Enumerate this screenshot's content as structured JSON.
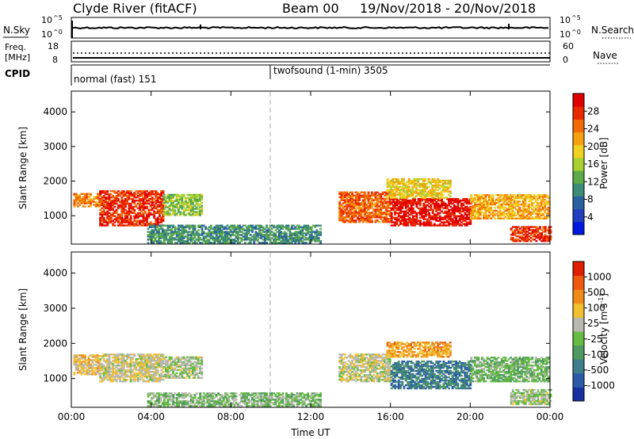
{
  "header": {
    "station": "Clyde River (fitACF)",
    "beam": "Beam 00",
    "date_range": "19/Nov/2018 - 20/Nov/2018"
  },
  "summary_panels": {
    "nsky": {
      "label": "N.Sky",
      "ticks": [
        "10^5",
        "10^0"
      ],
      "right_label": "N.Search",
      "right_ticks": [
        "10^5",
        "10^0"
      ]
    },
    "freq": {
      "label_line1": "Freq.",
      "label_line2": "[MHz]",
      "ticks": [
        "18",
        "8"
      ],
      "right_label": "Nave",
      "right_ticks": [
        "60",
        "0"
      ]
    },
    "cpid": {
      "label": "CPID",
      "segments": [
        {
          "name": "normal (fast) 151",
          "start_hour": 0
        },
        {
          "name": "twofsound (1-min) 3505",
          "start_hour": 10
        }
      ]
    }
  },
  "chart_data": [
    {
      "type": "heatmap",
      "title": "",
      "xlabel": "Time UT",
      "ylabel": "Slant Range [km]",
      "x_ticks": [
        "00:00",
        "04:00",
        "08:00",
        "12:00",
        "16:00",
        "20:00",
        "00:00"
      ],
      "xlim_hours": [
        0,
        24
      ],
      "y_ticks": [
        1000,
        2000,
        3000,
        4000
      ],
      "ylim": [
        180,
        4600
      ],
      "colorbar": {
        "label": "Power [dB]",
        "ticks": [
          "4",
          "8",
          "12",
          "16",
          "20",
          "24",
          "28"
        ],
        "range": [
          0,
          30
        ],
        "colors": [
          "#0018e0",
          "#2040c0",
          "#2a5fa0",
          "#3c8a78",
          "#5caa4a",
          "#a8d030",
          "#f0d020",
          "#f5a010",
          "#f26a08",
          "#e82a00",
          "#e00000"
        ]
      },
      "echo_regions": [
        {
          "t0": 0.1,
          "t1": 1.4,
          "r0": 1250,
          "r1": 1650,
          "value": 22
        },
        {
          "t0": 1.4,
          "t1": 4.6,
          "r0": 700,
          "r1": 1700,
          "value": 26
        },
        {
          "t0": 4.6,
          "t1": 6.5,
          "r0": 1000,
          "r1": 1600,
          "value": 14
        },
        {
          "t0": 13.4,
          "t1": 16.0,
          "r0": 800,
          "r1": 1700,
          "value": 24
        },
        {
          "t0": 16.0,
          "t1": 20.0,
          "r0": 700,
          "r1": 1500,
          "value": 28
        },
        {
          "t0": 15.8,
          "t1": 19.0,
          "r0": 1500,
          "r1": 2050,
          "value": 18
        },
        {
          "t0": 20.0,
          "t1": 23.9,
          "r0": 900,
          "r1": 1600,
          "value": 20
        },
        {
          "t0": 22.0,
          "t1": 24.0,
          "r0": 250,
          "r1": 700,
          "value": 26
        },
        {
          "t0": 3.8,
          "t1": 12.5,
          "r0": 200,
          "r1": 700,
          "value": 10
        }
      ]
    },
    {
      "type": "heatmap",
      "title": "",
      "xlabel": "Time UT",
      "ylabel": "Slant Range [km]",
      "x_ticks": [
        "00:00",
        "04:00",
        "08:00",
        "12:00",
        "16:00",
        "20:00",
        "00:00"
      ],
      "xlim_hours": [
        0,
        24
      ],
      "y_ticks": [
        1000,
        2000,
        3000,
        4000
      ],
      "ylim": [
        180,
        4600
      ],
      "colorbar": {
        "label": "Velocity [m s^-1]",
        "ticks": [
          "1000",
          "500",
          "100",
          "25",
          "-25",
          "-100",
          "-500",
          "-1000"
        ],
        "range": [
          -1200,
          1200
        ],
        "colors": [
          "#1830a0",
          "#2c5aa8",
          "#3d7e8a",
          "#4e9a60",
          "#66bb44",
          "#b8b8b0",
          "#f0c030",
          "#f08a18",
          "#ee5a10",
          "#e01e00"
        ]
      },
      "echo_regions": [
        {
          "t0": 0.1,
          "t1": 1.4,
          "r0": 1100,
          "r1": 1650,
          "value": 300
        },
        {
          "t0": 1.4,
          "t1": 4.6,
          "r0": 900,
          "r1": 1700,
          "value": 200
        },
        {
          "t0": 4.6,
          "t1": 6.5,
          "r0": 1000,
          "r1": 1600,
          "value": 50
        },
        {
          "t0": 13.4,
          "t1": 16.0,
          "r0": 900,
          "r1": 1700,
          "value": 150
        },
        {
          "t0": 16.0,
          "t1": 20.0,
          "r0": 700,
          "r1": 1500,
          "value": -600
        },
        {
          "t0": 15.8,
          "t1": 19.0,
          "r0": 1600,
          "r1": 2050,
          "value": 500
        },
        {
          "t0": 20.0,
          "t1": 23.9,
          "r0": 900,
          "r1": 1600,
          "value": -150
        },
        {
          "t0": 22.0,
          "t1": 24.0,
          "r0": 250,
          "r1": 700,
          "value": 0
        },
        {
          "t0": 3.8,
          "t1": 12.5,
          "r0": 200,
          "r1": 600,
          "value": -80
        }
      ]
    }
  ]
}
